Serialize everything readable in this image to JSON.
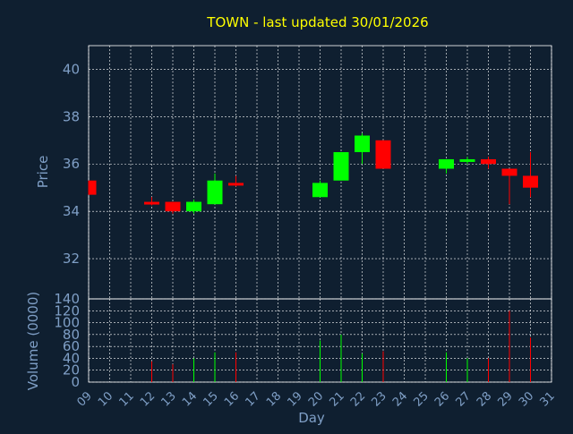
{
  "chart_data": {
    "type": "candlestick",
    "title": "TOWN - last updated 30/01/2026",
    "xlabel": "Day",
    "ylabel_price": "Price",
    "ylabel_volume": "Volume (0000)",
    "x_ticks": [
      "09",
      "10",
      "11",
      "12",
      "13",
      "14",
      "15",
      "16",
      "17",
      "18",
      "19",
      "20",
      "21",
      "22",
      "23",
      "24",
      "25",
      "26",
      "27",
      "28",
      "29",
      "30",
      "31"
    ],
    "price_ylim": [
      30.3,
      41.0
    ],
    "price_ticks": [
      32,
      34,
      36,
      38,
      40
    ],
    "volume_ylim": [
      0,
      140
    ],
    "volume_ticks": [
      0,
      20,
      40,
      60,
      80,
      100,
      120,
      140
    ],
    "grid": true,
    "colors": {
      "background": "#0f1f30",
      "title": "#ffff00",
      "axis_text": "#7f9fc6",
      "grid": "#ffffff",
      "up": "#00ff00",
      "down": "#ff0000"
    },
    "candles": [
      {
        "day": "09",
        "open": 35.3,
        "close": 34.7,
        "high": 35.3,
        "low": 34.7,
        "volume": 0
      },
      {
        "day": "12",
        "open": 34.4,
        "close": 34.3,
        "high": 34.6,
        "low": 34.25,
        "volume": 35
      },
      {
        "day": "13",
        "open": 34.4,
        "close": 34.0,
        "high": 34.4,
        "low": 33.9,
        "volume": 30
      },
      {
        "day": "14",
        "open": 34.0,
        "close": 34.4,
        "high": 34.5,
        "low": 33.9,
        "volume": 40
      },
      {
        "day": "15",
        "open": 34.3,
        "close": 35.3,
        "high": 35.6,
        "low": 34.3,
        "volume": 50
      },
      {
        "day": "16",
        "open": 35.2,
        "close": 35.1,
        "high": 35.5,
        "low": 35.05,
        "volume": 50
      },
      {
        "day": "20",
        "open": 34.6,
        "close": 35.2,
        "high": 35.3,
        "low": 34.6,
        "volume": 70
      },
      {
        "day": "21",
        "open": 35.3,
        "close": 36.5,
        "high": 36.5,
        "low": 35.3,
        "volume": 80
      },
      {
        "day": "22",
        "open": 36.5,
        "close": 37.2,
        "high": 37.3,
        "low": 36.0,
        "volume": 48
      },
      {
        "day": "23",
        "open": 37.0,
        "close": 35.8,
        "high": 37.0,
        "low": 35.8,
        "volume": 52
      },
      {
        "day": "26",
        "open": 35.8,
        "close": 36.2,
        "high": 36.2,
        "low": 35.6,
        "volume": 50
      },
      {
        "day": "27",
        "open": 36.1,
        "close": 36.2,
        "high": 36.3,
        "low": 36.0,
        "volume": 40
      },
      {
        "day": "28",
        "open": 36.2,
        "close": 36.0,
        "high": 36.3,
        "low": 35.8,
        "volume": 40
      },
      {
        "day": "29",
        "open": 35.8,
        "close": 35.5,
        "high": 35.8,
        "low": 34.3,
        "volume": 120
      },
      {
        "day": "30",
        "open": 35.5,
        "close": 35.0,
        "high": 36.5,
        "low": 34.6,
        "volume": 75
      }
    ]
  }
}
